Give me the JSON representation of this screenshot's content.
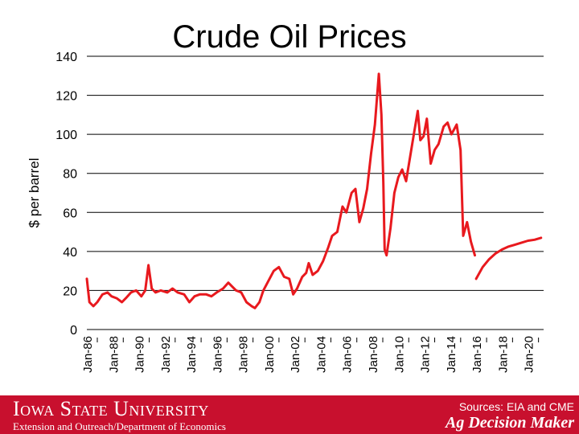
{
  "chart_data": {
    "type": "line",
    "title": "Crude Oil Prices",
    "ylabel": "$ per barrel",
    "xlabel": "",
    "ylim": [
      0,
      140
    ],
    "yticks": [
      "0",
      "20",
      "40",
      "60",
      "80",
      "100",
      "120",
      "140"
    ],
    "xticks": [
      "Jan-86",
      "Jan-88",
      "Jan-90",
      "Jan-92",
      "Jan-94",
      "Jan-96",
      "Jan-98",
      "Jan-00",
      "Jan-02",
      "Jan-04",
      "Jan-06",
      "Jan-08",
      "Jan-10",
      "Jan-12",
      "Jan-14",
      "Jan-16",
      "Jan-18",
      "Jan-20"
    ],
    "grid": true,
    "series": [
      {
        "color": "#e8191e",
        "points": [
          [
            1986.0,
            26
          ],
          [
            1986.2,
            14
          ],
          [
            1986.5,
            12
          ],
          [
            1986.8,
            14
          ],
          [
            1987.2,
            18
          ],
          [
            1987.6,
            19
          ],
          [
            1987.9,
            17
          ],
          [
            1988.3,
            16
          ],
          [
            1988.7,
            14
          ],
          [
            1989.0,
            16
          ],
          [
            1989.4,
            19
          ],
          [
            1989.8,
            20
          ],
          [
            1990.2,
            17
          ],
          [
            1990.5,
            20
          ],
          [
            1990.75,
            33
          ],
          [
            1991.0,
            21
          ],
          [
            1991.3,
            19
          ],
          [
            1991.7,
            20
          ],
          [
            1992.2,
            19
          ],
          [
            1992.6,
            21
          ],
          [
            1993.0,
            19
          ],
          [
            1993.5,
            18
          ],
          [
            1993.9,
            14
          ],
          [
            1994.3,
            17
          ],
          [
            1994.7,
            18
          ],
          [
            1995.2,
            18
          ],
          [
            1995.6,
            17
          ],
          [
            1996.0,
            19
          ],
          [
            1996.5,
            21
          ],
          [
            1996.9,
            24
          ],
          [
            1997.2,
            22
          ],
          [
            1997.5,
            20
          ],
          [
            1997.9,
            19
          ],
          [
            1998.3,
            14
          ],
          [
            1998.7,
            12
          ],
          [
            1998.95,
            11
          ],
          [
            1999.3,
            14
          ],
          [
            1999.6,
            20
          ],
          [
            2000.0,
            25
          ],
          [
            2000.4,
            30
          ],
          [
            2000.8,
            32
          ],
          [
            2001.2,
            27
          ],
          [
            2001.6,
            26
          ],
          [
            2001.9,
            18
          ],
          [
            2002.2,
            21
          ],
          [
            2002.6,
            27
          ],
          [
            2002.9,
            29
          ],
          [
            2003.1,
            34
          ],
          [
            2003.4,
            28
          ],
          [
            2003.8,
            30
          ],
          [
            2004.2,
            35
          ],
          [
            2004.6,
            42
          ],
          [
            2004.9,
            48
          ],
          [
            2005.3,
            50
          ],
          [
            2005.7,
            63
          ],
          [
            2006.0,
            60
          ],
          [
            2006.4,
            70
          ],
          [
            2006.7,
            72
          ],
          [
            2007.0,
            55
          ],
          [
            2007.3,
            62
          ],
          [
            2007.6,
            72
          ],
          [
            2007.9,
            90
          ],
          [
            2008.2,
            105
          ],
          [
            2008.5,
            131
          ],
          [
            2008.7,
            110
          ],
          [
            2008.85,
            75
          ],
          [
            2008.95,
            41
          ],
          [
            2009.1,
            38
          ],
          [
            2009.4,
            52
          ],
          [
            2009.7,
            70
          ],
          [
            2010.0,
            78
          ],
          [
            2010.3,
            82
          ],
          [
            2010.6,
            76
          ],
          [
            2010.9,
            88
          ],
          [
            2011.2,
            100
          ],
          [
            2011.5,
            112
          ],
          [
            2011.7,
            97
          ],
          [
            2011.95,
            99
          ],
          [
            2012.2,
            108
          ],
          [
            2012.5,
            85
          ],
          [
            2012.8,
            92
          ],
          [
            2013.1,
            95
          ],
          [
            2013.5,
            104
          ],
          [
            2013.8,
            106
          ],
          [
            2014.1,
            100
          ],
          [
            2014.5,
            105
          ],
          [
            2014.8,
            92
          ],
          [
            2015.0,
            48
          ],
          [
            2015.3,
            55
          ],
          [
            2015.6,
            45
          ],
          [
            2015.9,
            38
          ]
        ]
      },
      {
        "color": "#e8191e",
        "points": [
          [
            2016.0,
            26
          ],
          [
            2016.5,
            32
          ],
          [
            2017.0,
            36
          ],
          [
            2017.5,
            39
          ],
          [
            2018.0,
            41
          ],
          [
            2018.5,
            42.5
          ],
          [
            2019.0,
            43.5
          ],
          [
            2019.5,
            44.5
          ],
          [
            2020.0,
            45.5
          ],
          [
            2020.5,
            46
          ],
          [
            2021.0,
            47
          ]
        ]
      }
    ]
  },
  "footer": {
    "sources": "Sources: EIA and CME",
    "university": "Iowa State University",
    "department": "Extension and Outreach/Department of Economics",
    "program": "Ag Decision Maker"
  },
  "colors": {
    "line": "#e8191e",
    "footer_bg": "#c8102e"
  }
}
